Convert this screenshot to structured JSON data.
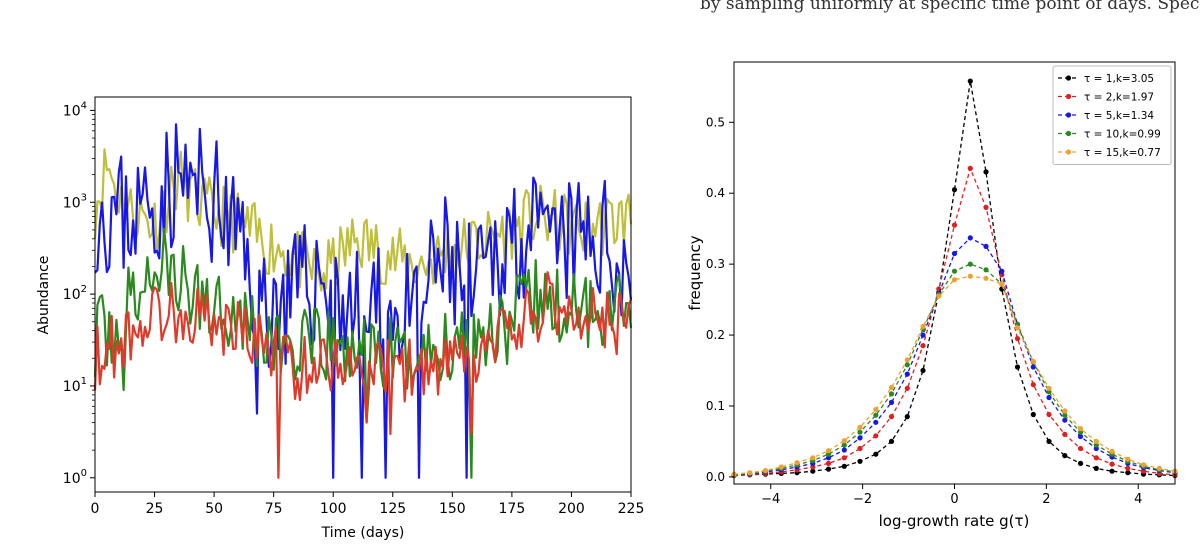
{
  "header_fragment": "by sampling uniformly at specific time point of days. Species",
  "chart_data": [
    {
      "type": "line",
      "xlabel": "Time (days)",
      "ylabel": "Abundance",
      "xlim": [
        0,
        225
      ],
      "ylim": [
        0.7,
        14000
      ],
      "yscale": "log",
      "xticks": [
        0,
        25,
        50,
        75,
        100,
        125,
        150,
        175,
        200,
        225
      ],
      "yticks": [
        {
          "value": 1,
          "base": "10",
          "exp": "0"
        },
        {
          "value": 10,
          "base": "10",
          "exp": "1"
        },
        {
          "value": 100,
          "base": "10",
          "exp": "2"
        },
        {
          "value": 1000,
          "base": "10",
          "exp": "3"
        },
        {
          "value": 10000,
          "base": "10",
          "exp": "4"
        }
      ],
      "grid": false,
      "series": [
        {
          "color": "#bfbf3c",
          "seed": 11,
          "level": [
            [
              0,
              900
            ],
            [
              5,
              2600
            ],
            [
              12,
              900
            ],
            [
              25,
              600
            ],
            [
              35,
              1800
            ],
            [
              45,
              900
            ],
            [
              60,
              600
            ],
            [
              72,
              350
            ],
            [
              80,
              300
            ],
            [
              95,
              150
            ],
            [
              110,
              400
            ],
            [
              125,
              250
            ],
            [
              135,
              200
            ],
            [
              150,
              300
            ],
            [
              165,
              400
            ],
            [
              185,
              700
            ],
            [
              205,
              500
            ],
            [
              225,
              700
            ]
          ],
          "spread": 0.22
        },
        {
          "color": "#1717e8",
          "seed": 23,
          "level": [
            [
              0,
              900
            ],
            [
              12,
              700
            ],
            [
              25,
              1000
            ],
            [
              35,
              1800
            ],
            [
              50,
              1000
            ],
            [
              60,
              400
            ],
            [
              70,
              80
            ],
            [
              80,
              80
            ],
            [
              95,
              150
            ],
            [
              110,
              60
            ],
            [
              120,
              60
            ],
            [
              135,
              50
            ],
            [
              145,
              250
            ],
            [
              160,
              100
            ],
            [
              175,
              500
            ],
            [
              190,
              300
            ],
            [
              210,
              400
            ],
            [
              225,
              200
            ]
          ],
          "spread": 0.45,
          "dips": [
            [
              68,
              5
            ],
            [
              100,
              1
            ],
            [
              112,
              1
            ],
            [
              122,
              1
            ],
            [
              136,
              1
            ],
            [
              156,
              1
            ]
          ]
        },
        {
          "color": "#2b8a1e",
          "seed": 37,
          "level": [
            [
              0,
              35
            ],
            [
              8,
              40
            ],
            [
              15,
              80
            ],
            [
              28,
              220
            ],
            [
              40,
              100
            ],
            [
              55,
              80
            ],
            [
              65,
              50
            ],
            [
              72,
              30
            ],
            [
              85,
              25
            ],
            [
              100,
              25
            ],
            [
              115,
              20
            ],
            [
              130,
              20
            ],
            [
              145,
              25
            ],
            [
              160,
              40
            ],
            [
              175,
              50
            ],
            [
              185,
              90
            ],
            [
              200,
              60
            ],
            [
              225,
              100
            ]
          ],
          "spread": 0.28,
          "dips": [
            [
              12,
              9
            ],
            [
              114,
              4
            ],
            [
              158,
              1
            ]
          ]
        },
        {
          "color": "#e03a2a",
          "seed": 53,
          "level": [
            [
              0,
              20
            ],
            [
              10,
              30
            ],
            [
              20,
              50
            ],
            [
              30,
              70
            ],
            [
              40,
              60
            ],
            [
              55,
              45
            ],
            [
              65,
              35
            ],
            [
              75,
              25
            ],
            [
              85,
              15
            ],
            [
              100,
              20
            ],
            [
              115,
              15
            ],
            [
              130,
              15
            ],
            [
              145,
              15
            ],
            [
              160,
              20
            ],
            [
              175,
              40
            ],
            [
              190,
              80
            ],
            [
              205,
              60
            ],
            [
              225,
              45
            ]
          ],
          "spread": 0.22,
          "dips": [
            [
              77,
              1
            ],
            [
              114,
              4
            ],
            [
              124,
              3
            ],
            [
              158,
              3
            ]
          ]
        }
      ]
    },
    {
      "type": "line",
      "xlabel": "log-growth rate g(τ)",
      "ylabel": "frequency",
      "xlim": [
        -4.8,
        4.8
      ],
      "ylim": [
        -0.01,
        0.585
      ],
      "xticks": [
        -4,
        -2,
        0,
        2,
        4
      ],
      "yticks": [
        0.0,
        0.1,
        0.2,
        0.3,
        0.4,
        0.5
      ],
      "legend_position": "upper right",
      "grid": false,
      "series": [
        {
          "name": "τ = 1,k=3.05",
          "color": "#000000",
          "values": [
            0.002,
            0.003,
            0.004,
            0.005,
            0.006,
            0.008,
            0.011,
            0.015,
            0.022,
            0.032,
            0.05,
            0.085,
            0.15,
            0.26,
            0.405,
            0.558,
            0.43,
            0.265,
            0.155,
            0.088,
            0.05,
            0.03,
            0.019,
            0.012,
            0.008,
            0.006,
            0.004,
            0.003,
            0.002
          ]
        },
        {
          "name": "τ = 2,k=1.97",
          "color": "#e02020",
          "values": [
            0.002,
            0.003,
            0.005,
            0.007,
            0.01,
            0.014,
            0.019,
            0.027,
            0.04,
            0.058,
            0.085,
            0.125,
            0.185,
            0.265,
            0.355,
            0.435,
            0.38,
            0.285,
            0.195,
            0.13,
            0.088,
            0.06,
            0.04,
            0.027,
            0.018,
            0.012,
            0.008,
            0.005,
            0.003
          ]
        },
        {
          "name": "τ = 5,k=1.34",
          "color": "#1717e8",
          "values": [
            0.003,
            0.004,
            0.007,
            0.01,
            0.014,
            0.019,
            0.027,
            0.038,
            0.055,
            0.077,
            0.105,
            0.145,
            0.2,
            0.258,
            0.315,
            0.337,
            0.325,
            0.29,
            0.215,
            0.155,
            0.112,
            0.08,
            0.057,
            0.04,
            0.028,
            0.019,
            0.013,
            0.009,
            0.006
          ]
        },
        {
          "name": "τ = 10,k=0.99",
          "color": "#2b8a1e",
          "values": [
            0.003,
            0.005,
            0.008,
            0.012,
            0.017,
            0.023,
            0.032,
            0.045,
            0.063,
            0.087,
            0.117,
            0.158,
            0.208,
            0.257,
            0.29,
            0.3,
            0.292,
            0.272,
            0.215,
            0.162,
            0.12,
            0.087,
            0.063,
            0.045,
            0.032,
            0.022,
            0.015,
            0.01,
            0.007
          ]
        },
        {
          "name": "τ = 15,k=0.77",
          "color": "#f0a030",
          "values": [
            0.004,
            0.006,
            0.009,
            0.014,
            0.02,
            0.027,
            0.037,
            0.051,
            0.07,
            0.095,
            0.126,
            0.165,
            0.212,
            0.255,
            0.278,
            0.283,
            0.28,
            0.272,
            0.21,
            0.163,
            0.125,
            0.093,
            0.068,
            0.05,
            0.036,
            0.025,
            0.017,
            0.012,
            0.008
          ]
        }
      ]
    }
  ]
}
